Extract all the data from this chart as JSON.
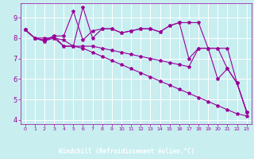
{
  "xlabel": "Windchill (Refroidissement éolien,°C)",
  "bg_color": "#c8eef0",
  "line_color": "#990099",
  "grid_color": "#ffffff",
  "xlabel_bg": "#8080c0",
  "xlim": [
    -0.5,
    23.5
  ],
  "ylim": [
    3.8,
    9.7
  ],
  "yticks": [
    4,
    5,
    6,
    7,
    8,
    9
  ],
  "xticks": [
    0,
    1,
    2,
    3,
    4,
    5,
    6,
    7,
    8,
    9,
    10,
    11,
    12,
    13,
    14,
    15,
    16,
    17,
    18,
    19,
    20,
    21,
    22,
    23
  ],
  "line1_x": [
    0,
    1,
    2,
    3,
    4,
    5,
    6,
    7,
    8,
    9,
    10,
    11,
    12,
    13,
    14,
    15,
    16,
    17,
    18,
    19,
    20,
    21,
    22,
    23
  ],
  "line1_y": [
    8.4,
    8.0,
    7.9,
    8.1,
    8.1,
    9.3,
    7.9,
    8.35,
    8.45,
    8.45,
    8.25,
    8.35,
    8.45,
    8.45,
    8.3,
    8.6,
    8.75,
    8.75,
    8.75,
    7.5,
    6.0,
    6.5,
    5.8,
    4.4
  ],
  "line2_x": [
    0,
    1,
    2,
    3,
    4,
    5,
    6,
    7,
    8,
    9,
    10,
    11,
    12,
    13,
    14,
    15,
    16,
    17,
    18,
    19,
    20,
    21,
    22,
    23
  ],
  "line2_y": [
    8.4,
    8.0,
    7.85,
    8.1,
    7.6,
    7.6,
    9.5,
    8.0,
    8.45,
    8.45,
    8.25,
    8.35,
    8.45,
    8.45,
    8.3,
    8.6,
    8.75,
    7.0,
    7.5,
    7.5,
    7.5,
    7.5,
    5.8,
    4.4
  ],
  "line3_x": [
    0,
    1,
    2,
    3,
    4,
    5,
    6,
    7,
    8,
    9,
    10,
    11,
    12,
    13,
    14,
    15,
    16,
    17,
    18,
    19,
    20,
    21,
    22,
    23
  ],
  "line3_y": [
    8.4,
    8.0,
    7.85,
    8.0,
    7.6,
    7.6,
    7.6,
    7.6,
    7.5,
    7.4,
    7.3,
    7.2,
    7.1,
    7.0,
    6.9,
    6.8,
    6.7,
    6.6,
    7.5,
    7.5,
    7.5,
    6.5,
    5.8,
    4.4
  ],
  "line4_x": [
    0,
    1,
    2,
    3,
    4,
    5,
    6,
    7,
    8,
    9,
    10,
    11,
    12,
    13,
    14,
    15,
    16,
    17,
    18,
    19,
    20,
    21,
    22,
    23
  ],
  "line4_y": [
    8.4,
    8.0,
    8.0,
    8.0,
    7.9,
    7.6,
    7.5,
    7.3,
    7.1,
    6.9,
    6.7,
    6.5,
    6.3,
    6.1,
    5.9,
    5.7,
    5.5,
    5.3,
    5.1,
    4.9,
    4.7,
    4.5,
    4.3,
    4.2
  ]
}
